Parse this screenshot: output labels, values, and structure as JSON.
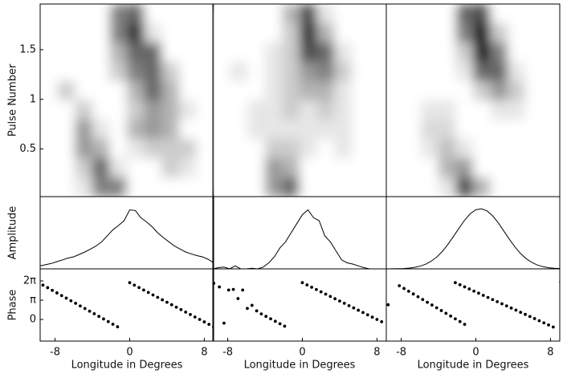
{
  "chart_data": [
    {
      "type": "heatmap",
      "ylabel": "Pulse Number",
      "xlim": [
        -9.6,
        9.0
      ],
      "ylim": [
        0.02,
        1.96
      ],
      "yticks": [
        0.5,
        1,
        1.5
      ],
      "values": [
        [
          0,
          0,
          0,
          0,
          0.5,
          0.6,
          0,
          0,
          0,
          0
        ],
        [
          0,
          0,
          0,
          0,
          0.5,
          0.8,
          0.1,
          0,
          0,
          0
        ],
        [
          0,
          0,
          0,
          0,
          0.3,
          0.6,
          0.6,
          0,
          0,
          0
        ],
        [
          0,
          0,
          0,
          0,
          0.2,
          0.5,
          0.6,
          0.2,
          0,
          0
        ],
        [
          0,
          0.2,
          0,
          0,
          0,
          0.3,
          0.6,
          0.3,
          0,
          0
        ],
        [
          0,
          0,
          0.2,
          0,
          0,
          0.2,
          0.4,
          0.3,
          0.1,
          0
        ],
        [
          0,
          0,
          0.4,
          0.1,
          0,
          0.3,
          0.4,
          0.3,
          0,
          0
        ],
        [
          0,
          0,
          0.4,
          0.3,
          0,
          0.1,
          0.2,
          0.2,
          0.2,
          0
        ],
        [
          0,
          0,
          0.2,
          0.6,
          0.1,
          0,
          0,
          0.2,
          0.1,
          0
        ],
        [
          0,
          0,
          0.1,
          0.5,
          0.5,
          0,
          0,
          0,
          0,
          0
        ]
      ]
    },
    {
      "type": "heatmap",
      "xlim": [
        -9.6,
        9.0
      ],
      "ylim": [
        0.02,
        1.96
      ],
      "values": [
        [
          0,
          0,
          0,
          0,
          0.3,
          0.7,
          0.1,
          0,
          0,
          0
        ],
        [
          0,
          0,
          0,
          0,
          0.2,
          0.8,
          0.3,
          0,
          0,
          0
        ],
        [
          0,
          0,
          0,
          0.1,
          0.2,
          0.7,
          0.6,
          0.1,
          0,
          0
        ],
        [
          0,
          0.1,
          0,
          0.1,
          0.2,
          0.4,
          0.5,
          0.2,
          0,
          0
        ],
        [
          0,
          0,
          0,
          0.1,
          0.2,
          0.3,
          0.3,
          0.1,
          0,
          0
        ],
        [
          0,
          0,
          0.1,
          0.1,
          0.2,
          0.1,
          0.2,
          0.1,
          0,
          0
        ],
        [
          0,
          0,
          0.1,
          0.1,
          0.1,
          0.1,
          0.1,
          0.1,
          0,
          0
        ],
        [
          0,
          0,
          0,
          0.2,
          0.2,
          0.1,
          0,
          0.1,
          0,
          0
        ],
        [
          0,
          0,
          0,
          0.4,
          0.3,
          0,
          0,
          0,
          0,
          0
        ],
        [
          0,
          0,
          0,
          0.4,
          0.6,
          0,
          0,
          0,
          0,
          0
        ]
      ]
    },
    {
      "type": "heatmap",
      "xlim": [
        -9.6,
        9.0
      ],
      "ylim": [
        0.02,
        1.96
      ],
      "values": [
        [
          0,
          0,
          0,
          0,
          0.6,
          0.7,
          0,
          0,
          0,
          0
        ],
        [
          0,
          0,
          0,
          0,
          0.5,
          0.9,
          0.2,
          0,
          0,
          0
        ],
        [
          0,
          0,
          0,
          0,
          0.2,
          0.9,
          0.5,
          0,
          0,
          0
        ],
        [
          0,
          0,
          0,
          0,
          0.1,
          0.6,
          0.6,
          0.1,
          0,
          0
        ],
        [
          0,
          0,
          0,
          0,
          0,
          0.2,
          0.4,
          0.2,
          0,
          0
        ],
        [
          0,
          0,
          0.1,
          0.1,
          0,
          0,
          0.1,
          0.1,
          0,
          0
        ],
        [
          0,
          0,
          0.15,
          0.15,
          0,
          0,
          0,
          0,
          0,
          0
        ],
        [
          0,
          0,
          0.1,
          0.25,
          0.1,
          0,
          0,
          0,
          0,
          0
        ],
        [
          0,
          0,
          0,
          0.3,
          0.4,
          0,
          0,
          0,
          0,
          0
        ],
        [
          0,
          0,
          0,
          0.1,
          0.7,
          0.3,
          0,
          0,
          0,
          0
        ]
      ]
    },
    {
      "type": "line",
      "ylabel": "Amplitude",
      "xlim": [
        -9.6,
        9.0
      ],
      "ylim": [
        0,
        1.2
      ],
      "x": [
        -9.6,
        -9.0,
        -8.4,
        -7.8,
        -7.2,
        -6.6,
        -6.0,
        -5.4,
        -4.8,
        -4.2,
        -3.6,
        -3.0,
        -2.4,
        -1.8,
        -1.2,
        -0.6,
        0,
        0.6,
        1.2,
        1.8,
        2.4,
        3.0,
        3.6,
        4.2,
        4.8,
        5.4,
        6.0,
        6.6,
        7.2,
        7.8,
        8.4,
        9.0
      ],
      "values": [
        0.05,
        0.07,
        0.09,
        0.12,
        0.15,
        0.18,
        0.2,
        0.24,
        0.28,
        0.33,
        0.38,
        0.45,
        0.55,
        0.65,
        0.72,
        0.8,
        0.98,
        0.97,
        0.85,
        0.78,
        0.7,
        0.6,
        0.52,
        0.45,
        0.38,
        0.33,
        0.28,
        0.25,
        0.22,
        0.2,
        0.16,
        0.1
      ]
    },
    {
      "type": "line",
      "xlim": [
        -9.6,
        9.0
      ],
      "ylim": [
        0,
        1.2
      ],
      "x": [
        -9.6,
        -9.0,
        -8.4,
        -7.8,
        -7.2,
        -6.6,
        -6.0,
        -5.4,
        -4.8,
        -4.2,
        -3.6,
        -3.0,
        -2.4,
        -1.8,
        -1.2,
        -0.6,
        0,
        0.6,
        1.2,
        1.8,
        2.4,
        3.0,
        3.6,
        4.2,
        4.8,
        5.4,
        6.0,
        6.6,
        7.2,
        7.8,
        8.4,
        9.0
      ],
      "values": [
        0,
        0.02,
        0.03,
        0,
        0.05,
        0,
        0,
        0.01,
        0,
        0.03,
        0.1,
        0.2,
        0.35,
        0.45,
        0.6,
        0.75,
        0.9,
        0.98,
        0.85,
        0.8,
        0.55,
        0.45,
        0.3,
        0.15,
        0.1,
        0.08,
        0.05,
        0.02,
        0,
        0,
        0,
        0
      ]
    },
    {
      "type": "line",
      "xlim": [
        -9.6,
        9.0
      ],
      "ylim": [
        0,
        1.2
      ],
      "x": [
        -9.6,
        -9.0,
        -8.4,
        -7.8,
        -7.2,
        -6.6,
        -6.0,
        -5.4,
        -4.8,
        -4.2,
        -3.6,
        -3.0,
        -2.4,
        -1.8,
        -1.2,
        -0.6,
        0,
        0.6,
        1.2,
        1.8,
        2.4,
        3.0,
        3.6,
        4.2,
        4.8,
        5.4,
        6.0,
        6.6,
        7.2,
        7.8,
        8.4,
        9.0
      ],
      "values": [
        0,
        0.001,
        0.003,
        0.006,
        0.0125,
        0.024,
        0.044,
        0.076,
        0.125,
        0.195,
        0.288,
        0.404,
        0.537,
        0.676,
        0.808,
        0.914,
        0.982,
        0.999,
        0.964,
        0.882,
        0.766,
        0.63,
        0.491,
        0.363,
        0.255,
        0.169,
        0.107,
        0.064,
        0.036,
        0.019,
        0.0099,
        0.005
      ]
    },
    {
      "type": "scatter",
      "ylabel": "Phase",
      "xlabel": "Longitude in Degrees",
      "xlim": [
        -9.6,
        9.0
      ],
      "ylim": [
        -3.53,
        8.25
      ],
      "xticks": [
        -8,
        0,
        8
      ],
      "yticks": [
        0,
        {
          "value": 3.1416,
          "label": "π"
        },
        {
          "value": 6.2832,
          "label": "2π"
        }
      ],
      "x": [
        -9.3,
        -8.8,
        -8.3,
        -7.8,
        -7.3,
        -6.8,
        -6.3,
        -5.8,
        -5.3,
        -4.8,
        -4.3,
        -3.8,
        -3.3,
        -2.8,
        -2.3,
        -1.8,
        -1.3,
        0,
        0.5,
        1,
        1.5,
        2,
        2.5,
        3,
        3.5,
        4,
        4.5,
        5,
        5.5,
        6,
        6.5,
        7,
        7.5,
        8,
        8.5,
        9
      ],
      "values": [
        5.6,
        5.18,
        4.75,
        4.33,
        3.9,
        3.48,
        3.05,
        2.63,
        2.2,
        1.78,
        1.35,
        0.93,
        0.5,
        0.08,
        -0.35,
        -0.78,
        -1.2,
        6,
        5.6,
        5.2,
        4.8,
        4.4,
        4,
        3.6,
        3.2,
        2.8,
        2.4,
        2,
        1.6,
        1.2,
        0.8,
        0.4,
        0,
        -0.4,
        -0.8,
        -1.2
      ]
    },
    {
      "type": "scatter",
      "xlabel": "Longitude in Degrees",
      "xlim": [
        -9.6,
        9.0
      ],
      "ylim": [
        -3.53,
        8.25
      ],
      "xticks": [
        -8,
        0,
        8
      ],
      "x": [
        -9.5,
        -8.9,
        -8.4,
        -7.9,
        -7.4,
        -6.9,
        -6.4,
        -5.9,
        -5.4,
        -4.9,
        -4.4,
        -3.9,
        -3.4,
        -2.9,
        -2.4,
        -1.9,
        0,
        0.5,
        1,
        1.5,
        2,
        2.5,
        3,
        3.5,
        4,
        4.5,
        5,
        5.5,
        6,
        6.5,
        7,
        7.5,
        8,
        8.5
      ],
      "values": [
        5.9,
        5.3,
        -0.6,
        4.8,
        4.9,
        3.4,
        4.8,
        1.8,
        2.3,
        1.4,
        0.9,
        0.5,
        0.1,
        -0.3,
        -0.7,
        -1.1,
        6,
        5.63,
        5.25,
        4.88,
        4.5,
        4.13,
        3.75,
        3.38,
        3,
        2.63,
        2.25,
        1.88,
        1.5,
        1.13,
        0.75,
        0.38,
        0,
        -0.38
      ]
    },
    {
      "type": "scatter",
      "xlabel": "Longitude in Degrees",
      "xlim": [
        -9.6,
        9.0
      ],
      "ylim": [
        -3.53,
        8.25
      ],
      "xticks": [
        -8,
        0,
        8
      ],
      "x": [
        -9.4,
        -8.2,
        -7.7,
        -7.2,
        -6.7,
        -6.2,
        -5.7,
        -5.2,
        -4.7,
        -4.2,
        -3.7,
        -3.2,
        -2.7,
        -2.2,
        -1.7,
        -1.2,
        -2.2,
        -1.7,
        -1.2,
        -0.7,
        -0.2,
        0.3,
        0.8,
        1.3,
        1.8,
        2.3,
        2.8,
        3.3,
        3.8,
        4.3,
        4.8,
        5.3,
        5.8,
        6.3,
        6.8,
        7.3,
        7.8,
        8.3,
        9.1,
        9.4
      ],
      "values": [
        2.4,
        5.5,
        5.05,
        4.6,
        4.15,
        3.7,
        3.25,
        2.8,
        2.35,
        1.9,
        1.45,
        1,
        0.55,
        0.1,
        -0.35,
        -0.8,
        6,
        5.66,
        5.31,
        4.97,
        4.62,
        4.28,
        3.93,
        3.59,
        3.24,
        2.9,
        2.55,
        2.21,
        1.86,
        1.52,
        1.17,
        0.83,
        0.48,
        0.14,
        -0.21,
        -0.55,
        -0.9,
        -1.24,
        6.1,
        5.9
      ]
    }
  ]
}
